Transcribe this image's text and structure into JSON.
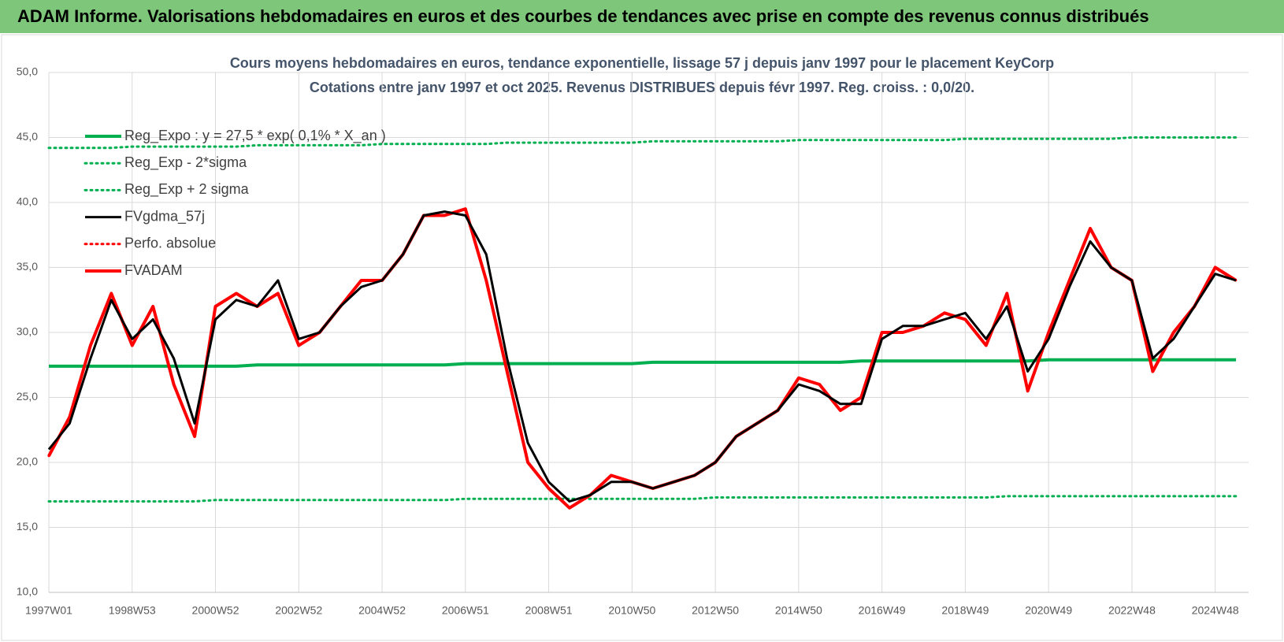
{
  "header": {
    "title": "ADAM Informe. Valorisations hebdomadaires en euros et des courbes de tendances avec prise en compte des revenus connus distribués"
  },
  "chart_data": {
    "type": "line",
    "title": "Cours moyens hebdomadaires en euros, tendance exponentielle, lissage 57 j depuis janv 1997 pour le placement KeyCorp",
    "subtitle": "Cotations entre janv 1997 et oct 2025. Revenus DISTRIBUES depuis févr 1997. Reg. croiss. : 0,0/20.",
    "categories": [
      "1997W01",
      null,
      null,
      null,
      "1998W53",
      null,
      null,
      null,
      "2000W52",
      null,
      null,
      null,
      "2002W52",
      null,
      null,
      null,
      "2004W52",
      null,
      null,
      null,
      "2006W51",
      null,
      null,
      null,
      "2008W51",
      null,
      null,
      null,
      "2010W50",
      null,
      null,
      null,
      "2012W50",
      null,
      null,
      null,
      "2014W50",
      null,
      null,
      null,
      "2016W49",
      null,
      null,
      null,
      "2018W49",
      null,
      null,
      null,
      "2020W49",
      null,
      null,
      null,
      "2022W48",
      null,
      null,
      null,
      "2024W48",
      null
    ],
    "ylim": [
      10,
      50
    ],
    "yticks": [
      {
        "value": 10,
        "label": "10,0"
      },
      {
        "value": 15,
        "label": "15,0"
      },
      {
        "value": 20,
        "label": "20,0"
      },
      {
        "value": 25,
        "label": "25,0"
      },
      {
        "value": 30,
        "label": "30,0"
      },
      {
        "value": 35,
        "label": "35,0"
      },
      {
        "value": 40,
        "label": "40,0"
      },
      {
        "value": 45,
        "label": "45,0"
      },
      {
        "value": 50,
        "label": "50,0"
      }
    ],
    "grid": true,
    "legend": "upper-left",
    "series": [
      {
        "name": "Reg_Expo : y = 27,5 * exp( 0,1% *  X_an )",
        "color": "#00b050",
        "style": "solid",
        "values": [
          27.4,
          27.4,
          27.4,
          27.4,
          27.4,
          27.4,
          27.4,
          27.4,
          27.4,
          27.4,
          27.5,
          27.5,
          27.5,
          27.5,
          27.5,
          27.5,
          27.5,
          27.5,
          27.5,
          27.5,
          27.6,
          27.6,
          27.6,
          27.6,
          27.6,
          27.6,
          27.6,
          27.6,
          27.6,
          27.7,
          27.7,
          27.7,
          27.7,
          27.7,
          27.7,
          27.7,
          27.7,
          27.7,
          27.7,
          27.8,
          27.8,
          27.8,
          27.8,
          27.8,
          27.8,
          27.8,
          27.8,
          27.8,
          27.9,
          27.9,
          27.9,
          27.9,
          27.9,
          27.9,
          27.9,
          27.9,
          27.9,
          27.9
        ]
      },
      {
        "name": "Reg_Exp - 2*sigma",
        "color": "#00b050",
        "style": "dotted",
        "values": [
          17.0,
          17.0,
          17.0,
          17.0,
          17.0,
          17.0,
          17.0,
          17.0,
          17.1,
          17.1,
          17.1,
          17.1,
          17.1,
          17.1,
          17.1,
          17.1,
          17.1,
          17.1,
          17.1,
          17.1,
          17.2,
          17.2,
          17.2,
          17.2,
          17.2,
          17.2,
          17.2,
          17.2,
          17.2,
          17.2,
          17.2,
          17.2,
          17.3,
          17.3,
          17.3,
          17.3,
          17.3,
          17.3,
          17.3,
          17.3,
          17.3,
          17.3,
          17.3,
          17.3,
          17.3,
          17.3,
          17.4,
          17.4,
          17.4,
          17.4,
          17.4,
          17.4,
          17.4,
          17.4,
          17.4,
          17.4,
          17.4,
          17.4
        ]
      },
      {
        "name": "Reg_Exp + 2 sigma",
        "color": "#00b050",
        "style": "dotted",
        "values": [
          44.2,
          44.2,
          44.2,
          44.2,
          44.3,
          44.3,
          44.3,
          44.3,
          44.3,
          44.3,
          44.4,
          44.4,
          44.4,
          44.4,
          44.4,
          44.4,
          44.5,
          44.5,
          44.5,
          44.5,
          44.5,
          44.5,
          44.6,
          44.6,
          44.6,
          44.6,
          44.6,
          44.6,
          44.6,
          44.7,
          44.7,
          44.7,
          44.7,
          44.7,
          44.7,
          44.7,
          44.8,
          44.8,
          44.8,
          44.8,
          44.8,
          44.8,
          44.8,
          44.8,
          44.9,
          44.9,
          44.9,
          44.9,
          44.9,
          44.9,
          44.9,
          44.9,
          45.0,
          45.0,
          45.0,
          45.0,
          45.0,
          45.0
        ]
      },
      {
        "name": "FVgdma_57j",
        "color": "#000000",
        "style": "solid",
        "values": [
          21,
          23,
          28,
          32.5,
          29.5,
          31,
          28,
          23,
          31,
          32.5,
          32,
          34,
          29.5,
          30,
          32,
          33.5,
          34,
          36,
          39,
          39.3,
          39,
          36,
          28,
          21.5,
          18.5,
          17,
          17.5,
          18.5,
          18.5,
          18,
          18.5,
          19,
          20,
          22,
          23,
          24,
          26,
          25.5,
          24.5,
          24.5,
          29.5,
          30.5,
          30.5,
          31,
          31.5,
          29.5,
          32,
          27,
          29.5,
          33.5,
          37,
          35,
          34,
          28,
          29.5,
          32,
          34.5,
          34
        ]
      },
      {
        "name": "Perfo. absolue",
        "color": "#ff0000",
        "style": "dotted",
        "values": [
          20.5,
          23.5,
          29,
          33,
          29,
          32,
          26,
          22,
          32,
          33,
          32,
          33,
          29,
          30,
          32,
          34,
          34,
          36,
          39,
          39,
          39.5,
          34,
          27,
          20,
          18,
          16.5,
          17.5,
          19,
          18.5,
          18,
          18.5,
          19,
          20,
          22,
          23,
          24,
          26.5,
          26,
          24,
          25,
          30,
          30,
          30.5,
          31.5,
          31,
          29,
          33,
          25.5,
          30,
          34,
          38,
          35,
          34,
          27,
          30,
          32,
          35,
          34
        ]
      },
      {
        "name": "FVADAM",
        "color": "#ff0000",
        "style": "solid",
        "values": [
          20.5,
          23.5,
          29,
          33,
          29,
          32,
          26,
          22,
          32,
          33,
          32,
          33,
          29,
          30,
          32,
          34,
          34,
          36,
          39,
          39,
          39.5,
          34,
          27,
          20,
          18,
          16.5,
          17.5,
          19,
          18.5,
          18,
          18.5,
          19,
          20,
          22,
          23,
          24,
          26.5,
          26,
          24,
          25,
          30,
          30,
          30.5,
          31.5,
          31,
          29,
          33,
          25.5,
          30,
          34,
          38,
          35,
          34,
          27,
          30,
          32,
          35,
          34
        ]
      }
    ]
  }
}
